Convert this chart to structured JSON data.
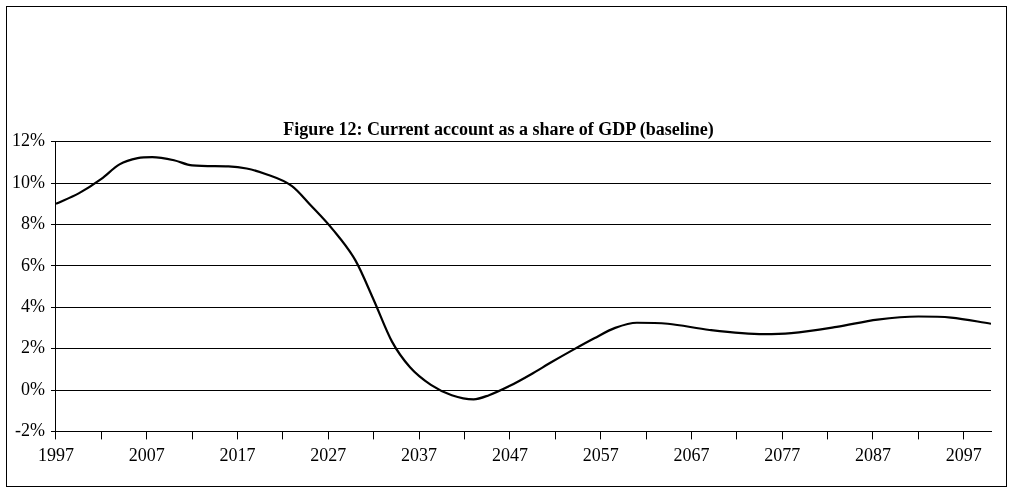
{
  "chart_data": {
    "type": "line",
    "title": "Figure 12: Current account as a share of GDP (baseline)",
    "x": [
      1997,
      1999.5,
      2002,
      2004,
      2006,
      2007.6,
      2010,
      2012,
      2016,
      2018,
      2020,
      2023,
      2025,
      2027.5,
      2030,
      2032,
      2034,
      2036,
      2038.3,
      2040.6,
      2043,
      2044.7,
      2047,
      2049.3,
      2051.6,
      2054,
      2056.3,
      2058.6,
      2061,
      2064.4,
      2069,
      2075,
      2078,
      2083,
      2087.5,
      2092,
      2095.6,
      2100
    ],
    "series": [
      {
        "color": "#000000",
        "values": [
          9.0,
          9.5,
          10.2,
          10.9,
          11.2,
          11.25,
          11.1,
          10.85,
          10.8,
          10.7,
          10.45,
          9.85,
          8.95,
          7.75,
          6.25,
          4.35,
          2.35,
          1.1,
          0.25,
          -0.25,
          -0.45,
          -0.25,
          0.2,
          0.75,
          1.35,
          1.95,
          2.5,
          3.0,
          3.25,
          3.2,
          2.9,
          2.7,
          2.75,
          3.05,
          3.4,
          3.55,
          3.5,
          3.2
        ]
      }
    ],
    "xlim": [
      1997,
      2100
    ],
    "xticks": [
      1997,
      {
        "value": 2002,
        "label": null
      },
      2007,
      {
        "value": 2012,
        "label": null
      },
      2017,
      {
        "value": 2022,
        "label": null
      },
      2027,
      {
        "value": 2032,
        "label": null
      },
      2037,
      {
        "value": 2042,
        "label": null
      },
      2047,
      {
        "value": 2052,
        "label": null
      },
      2057,
      {
        "value": 2062,
        "label": null
      },
      2067,
      {
        "value": 2072,
        "label": null
      },
      2077,
      {
        "value": 2082,
        "label": null
      },
      2087,
      {
        "value": 2092,
        "label": null
      },
      2097
    ],
    "ylim": [
      -2,
      12
    ],
    "yticks": [
      {
        "value": -2,
        "label": "-2%"
      },
      {
        "value": 0,
        "label": "0%"
      },
      {
        "value": 2,
        "label": "2%"
      },
      {
        "value": 4,
        "label": "4%"
      },
      {
        "value": 6,
        "label": "6%"
      },
      {
        "value": 8,
        "label": "8%"
      },
      {
        "value": 10,
        "label": "10%"
      },
      {
        "value": 12,
        "label": "12%"
      }
    ],
    "grid": "y",
    "legend": false,
    "marker": "none",
    "line_style": "solid"
  }
}
